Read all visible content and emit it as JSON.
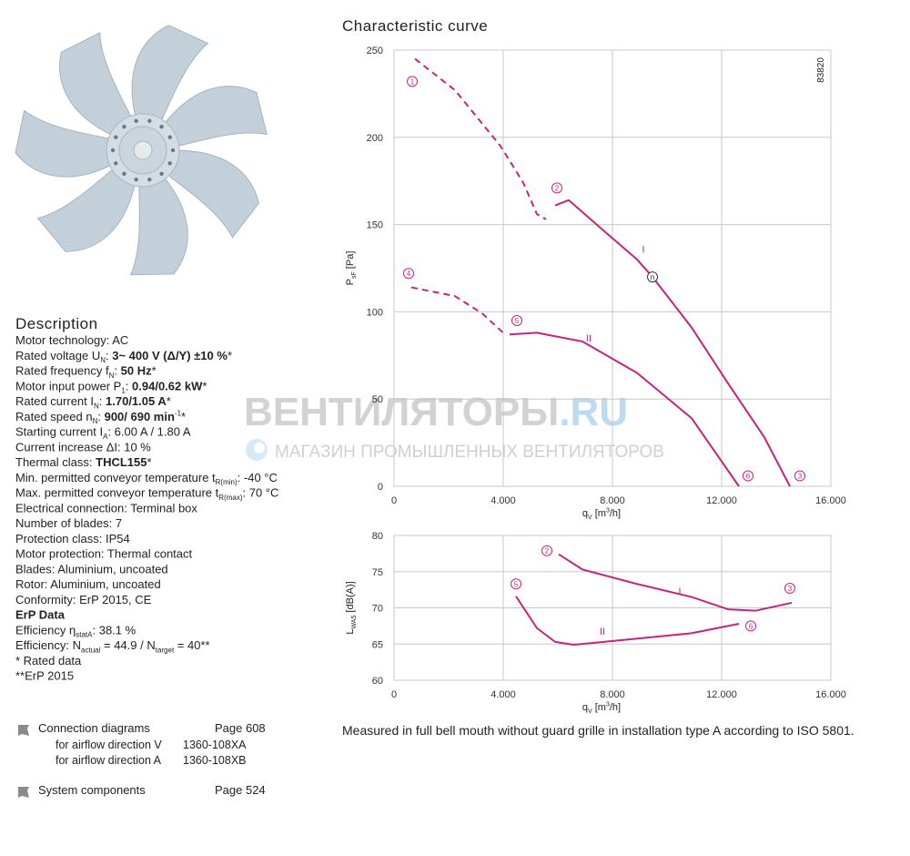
{
  "description": {
    "heading": "Description",
    "lines": [
      [
        "Motor technology: AC"
      ],
      [
        "Rated voltage U",
        {
          "sub": "N"
        },
        ": ",
        {
          "b": "3~ 400 V (Δ/Y) ±10 %"
        },
        "*"
      ],
      [
        "Rated frequency f",
        {
          "sub": "N"
        },
        ": ",
        {
          "b": "50 Hz"
        },
        "*"
      ],
      [
        "Motor input power P",
        {
          "sub": "1"
        },
        ": ",
        {
          "b": "0.94/0.62 kW"
        },
        "*"
      ],
      [
        "Rated current I",
        {
          "sub": "N"
        },
        ": ",
        {
          "b": "1.70/1.05 A"
        },
        "*"
      ],
      [
        "Rated speed n",
        {
          "sub": "N"
        },
        ": ",
        {
          "b": "900/ 690 min"
        },
        {
          "sup": "-1"
        },
        "*"
      ],
      [
        "Starting current I",
        {
          "sub": "A"
        },
        ": 6.00 A / 1.80 A"
      ],
      [
        "Current increase ΔI: 10 %"
      ],
      [
        "Thermal class: ",
        {
          "b": "THCL155"
        },
        "*"
      ],
      [
        "Min. permitted conveyor temperature t",
        {
          "sub": "R(min)"
        },
        ": -40 °C"
      ],
      [
        "Max. permitted conveyor temperature t",
        {
          "sub": "R(max)"
        },
        ": 70 °C"
      ],
      [
        "Electrical connection: Terminal box"
      ],
      [
        "Number of blades: 7"
      ],
      [
        "Protection class: IP54"
      ],
      [
        "Motor protection: Thermal contact"
      ],
      [
        "Blades: Aluminium, uncoated"
      ],
      [
        "Rotor: Aluminium, uncoated"
      ],
      [
        "Conformity: ErP 2015, CE"
      ],
      [
        {
          "b": "ErP Data"
        }
      ],
      [
        "Efficiency η",
        {
          "sub": "statA"
        },
        ": 38.1 %"
      ],
      [
        "Efficiency: N",
        {
          "sub": "actual"
        },
        " = 44.9 / N",
        {
          "sub": "target"
        },
        " = 40**"
      ],
      [
        "* Rated data"
      ],
      [
        "**ErP 2015"
      ]
    ]
  },
  "links": [
    {
      "title": "Connection diagrams",
      "page": "Page 608",
      "items": [
        {
          "label": "for airflow direction V",
          "code": "1360-108XA"
        },
        {
          "label": "for airflow direction A",
          "code": "1360-108XB"
        }
      ]
    },
    {
      "title": "System components",
      "page": "Page 524",
      "items": []
    }
  ],
  "watermark": {
    "name": "ВЕНТИЛЯТОРЫ",
    "domain": ".RU",
    "tagline": "МАГАЗИН ПРОМЫШЛЕННЫХ ВЕНТИЛЯТОРОВ"
  },
  "heading": "Characteristic curve",
  "caption": "Measured in full bell mouth without guard grille in installation type A according to ISO 5801.",
  "chart_data": [
    {
      "type": "line",
      "code": "83820",
      "xlabel": [
        "q",
        {
          "sub": "V"
        },
        " [m",
        {
          "sup": "3"
        },
        "/h]"
      ],
      "ylabel": [
        "P",
        {
          "sub": "sF"
        },
        " [Pa]"
      ],
      "xlim": [
        0,
        16000
      ],
      "xticks": [
        0,
        {
          "value": 4000,
          "label": "4.000"
        },
        {
          "value": 8000,
          "label": "8.000"
        },
        {
          "value": 12000,
          "label": "12.000"
        },
        {
          "value": 16000,
          "label": "16.000"
        }
      ],
      "ylim": [
        0,
        250
      ],
      "yticks": [
        0,
        50,
        100,
        150,
        200,
        250
      ],
      "grid": true,
      "series": [
        {
          "color": "#c2257c",
          "dashed": true,
          "x": [
            767,
            2233,
            3900,
            4733,
            5233,
            5567
          ],
          "values": [
            245,
            227,
            195,
            174,
            156,
            153
          ]
        },
        {
          "color": "#c2257c",
          "dashed": false,
          "x": [
            5900,
            6400,
            7567,
            8900,
            9467,
            10900,
            12233,
            13567,
            14500
          ],
          "values": [
            161,
            164,
            148,
            130,
            120,
            91,
            59,
            28,
            0
          ]
        },
        {
          "color": "#c2257c",
          "dashed": true,
          "x": [
            633,
            2233,
            3233,
            4067
          ],
          "values": [
            114,
            109,
            99,
            87
          ]
        },
        {
          "color": "#c2257c",
          "dashed": false,
          "x": [
            4233,
            5233,
            6900,
            8900,
            10900,
            12633
          ],
          "values": [
            87,
            88,
            83,
            65,
            39,
            0
          ]
        }
      ],
      "annotations": [
        {
          "text": "1",
          "circled": true,
          "x": 667,
          "y": 232
        },
        {
          "text": "2",
          "circled": true,
          "x": 5967,
          "y": 171
        },
        {
          "text": "4",
          "circled": true,
          "x": 533,
          "y": 122
        },
        {
          "text": "5",
          "circled": true,
          "x": 4500,
          "y": 95
        },
        {
          "text": "6",
          "circled": true,
          "x": 12967,
          "y": 6
        },
        {
          "text": "3",
          "circled": true,
          "x": 14867,
          "y": 6
        },
        {
          "text": "n",
          "circled": true,
          "x": 9467,
          "y": 120
        },
        {
          "text": "I",
          "circled": false,
          "x": 9133,
          "y": 136
        },
        {
          "text": "II",
          "circled": false,
          "x": 7133,
          "y": 85
        }
      ]
    },
    {
      "type": "line",
      "xlabel": [
        "q",
        {
          "sub": "V"
        },
        " [m",
        {
          "sup": "3"
        },
        "/h]"
      ],
      "ylabel": [
        "L",
        {
          "sub": "WA5"
        },
        " [dB(A)]"
      ],
      "xlim": [
        0,
        16000
      ],
      "xticks": [
        0,
        {
          "value": 4000,
          "label": "4.000"
        },
        {
          "value": 8000,
          "label": "8.000"
        },
        {
          "value": 12000,
          "label": "12.000"
        },
        {
          "value": 16000,
          "label": "16.000"
        }
      ],
      "ylim": [
        60,
        80
      ],
      "yticks": [
        60,
        65,
        70,
        75,
        80
      ],
      "grid": true,
      "series": [
        {
          "color": "#c2257c",
          "dashed": false,
          "x": [
            6033,
            6900,
            8900,
            10900,
            12233,
            13233,
            14567
          ],
          "values": [
            77.4,
            75.3,
            73.3,
            71.5,
            69.8,
            69.6,
            70.7
          ]
        },
        {
          "color": "#c2257c",
          "dashed": false,
          "x": [
            4467,
            5233,
            5900,
            6567,
            8233,
            10900,
            12633
          ],
          "values": [
            71.6,
            67.2,
            65.3,
            64.9,
            65.5,
            66.5,
            67.8
          ]
        }
      ],
      "annotations": [
        {
          "text": "2",
          "circled": true,
          "x": 5600,
          "y": 77.9
        },
        {
          "text": "5",
          "circled": true,
          "x": 4467,
          "y": 73.3
        },
        {
          "text": "3",
          "circled": true,
          "x": 14500,
          "y": 72.7
        },
        {
          "text": "6",
          "circled": true,
          "x": 13067,
          "y": 67.5
        },
        {
          "text": "I",
          "circled": false,
          "x": 10467,
          "y": 72.3
        },
        {
          "text": "II",
          "circled": false,
          "x": 7633,
          "y": 66.8
        }
      ]
    }
  ]
}
